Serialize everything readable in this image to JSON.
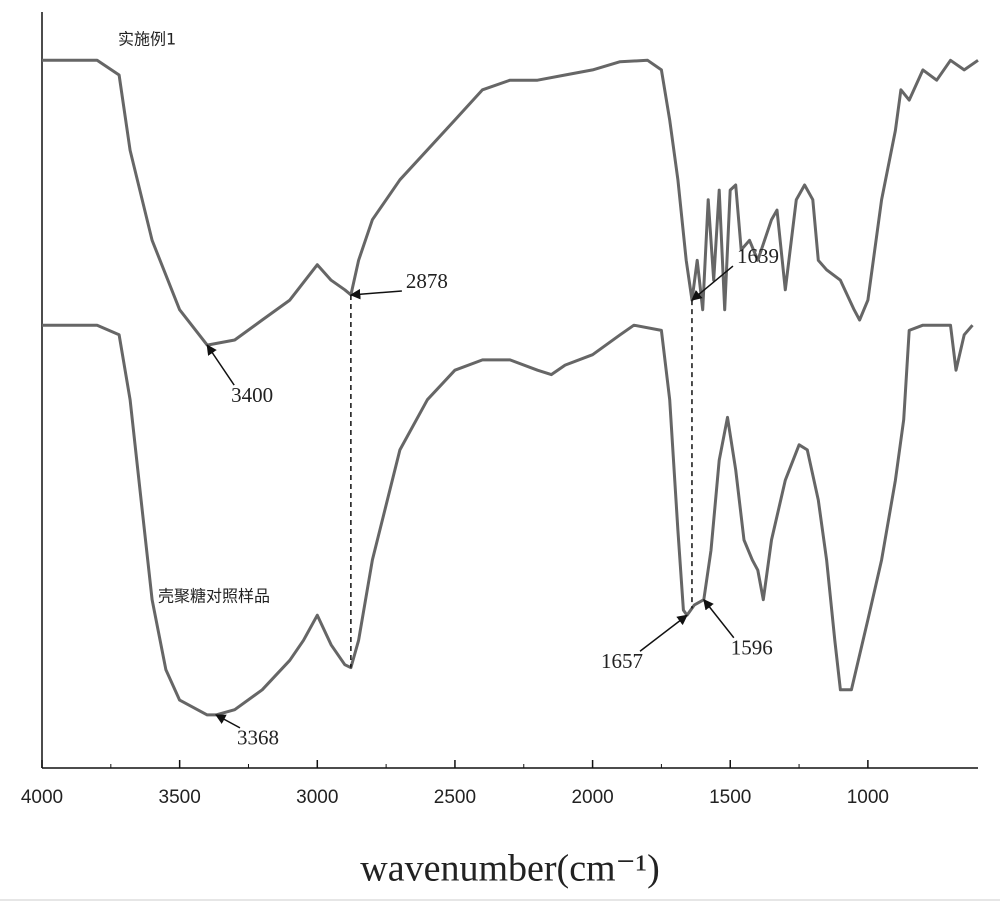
{
  "chart_data": {
    "type": "line",
    "x_label": "wavenumber(cm⁻¹)",
    "xlim": [
      4000,
      600
    ],
    "xticks": [
      4000,
      3500,
      3000,
      2500,
      2000,
      1500,
      1000
    ],
    "ylim": [
      0,
      100
    ],
    "grid": false,
    "series": [
      {
        "name": "实施例1",
        "color": "#666666",
        "x": [
          4000,
          3800,
          3720,
          3680,
          3600,
          3500,
          3400,
          3300,
          3200,
          3100,
          3000,
          2950,
          2900,
          2878,
          2850,
          2800,
          2700,
          2500,
          2400,
          2300,
          2200,
          2100,
          2000,
          1900,
          1800,
          1750,
          1720,
          1690,
          1660,
          1639,
          1620,
          1600,
          1580,
          1560,
          1540,
          1520,
          1500,
          1480,
          1460,
          1430,
          1400,
          1350,
          1330,
          1300,
          1260,
          1230,
          1200,
          1180,
          1150,
          1100,
          1050,
          1030,
          1000,
          950,
          900,
          880,
          850,
          800,
          750,
          700,
          650,
          600
        ],
        "values": [
          95.9,
          95.9,
          93.9,
          83.7,
          71.5,
          62.1,
          57.3,
          58.0,
          60.7,
          63.4,
          68.2,
          66.1,
          64.8,
          64.1,
          68.8,
          74.3,
          79.7,
          87.8,
          91.9,
          93.2,
          93.2,
          93.9,
          94.6,
          95.7,
          95.9,
          94.6,
          87.8,
          79.7,
          68.8,
          63.4,
          68.8,
          62.1,
          77.0,
          66.1,
          78.3,
          62.1,
          78.3,
          79.0,
          70.2,
          71.5,
          68.8,
          74.3,
          75.6,
          64.8,
          77.0,
          79.0,
          77.0,
          68.8,
          67.5,
          66.1,
          62.1,
          60.7,
          63.4,
          77.0,
          86.4,
          91.9,
          90.5,
          94.6,
          93.2,
          95.9,
          94.6,
          95.9
        ]
      },
      {
        "name": "壳聚糖对照样品",
        "color": "#666666",
        "x": [
          4000,
          3800,
          3720,
          3680,
          3640,
          3600,
          3550,
          3500,
          3400,
          3368,
          3300,
          3200,
          3100,
          3050,
          3000,
          2950,
          2900,
          2878,
          2850,
          2800,
          2700,
          2600,
          2500,
          2400,
          2300,
          2200,
          2150,
          2100,
          2000,
          1900,
          1850,
          1750,
          1720,
          1690,
          1670,
          1657,
          1630,
          1596,
          1570,
          1540,
          1510,
          1480,
          1450,
          1420,
          1400,
          1380,
          1350,
          1300,
          1250,
          1220,
          1180,
          1150,
          1120,
          1100,
          1060,
          1000,
          950,
          900,
          870,
          850,
          800,
          700,
          680,
          650,
          620
        ],
        "values": [
          60.0,
          60.0,
          58.7,
          49.9,
          36.3,
          22.8,
          13.3,
          9.2,
          7.2,
          7.2,
          7.9,
          10.6,
          14.6,
          17.3,
          20.7,
          16.7,
          14.0,
          13.6,
          17.3,
          28.2,
          43.1,
          49.9,
          53.9,
          55.3,
          55.3,
          53.9,
          53.3,
          54.6,
          56.0,
          58.7,
          60.0,
          59.3,
          49.9,
          32.2,
          21.4,
          20.7,
          22.1,
          22.8,
          29.5,
          41.7,
          47.5,
          40.4,
          30.9,
          28.2,
          26.8,
          22.8,
          30.9,
          39.0,
          43.8,
          43.1,
          36.3,
          28.2,
          17.3,
          10.6,
          10.6,
          20.1,
          28.2,
          39.0,
          47.2,
          59.3,
          60.0,
          60.0,
          53.9,
          58.7,
          60.0
        ]
      }
    ],
    "annotations": [
      {
        "x": 3400,
        "series": 0
      },
      {
        "x": 2878,
        "series": 0,
        "dashed": true
      },
      {
        "x": 1639,
        "series": 0,
        "dashed": true
      },
      {
        "x": 3368,
        "series": 1
      },
      {
        "x": 1657,
        "series": 1
      },
      {
        "x": 1596,
        "series": 1
      }
    ]
  }
}
